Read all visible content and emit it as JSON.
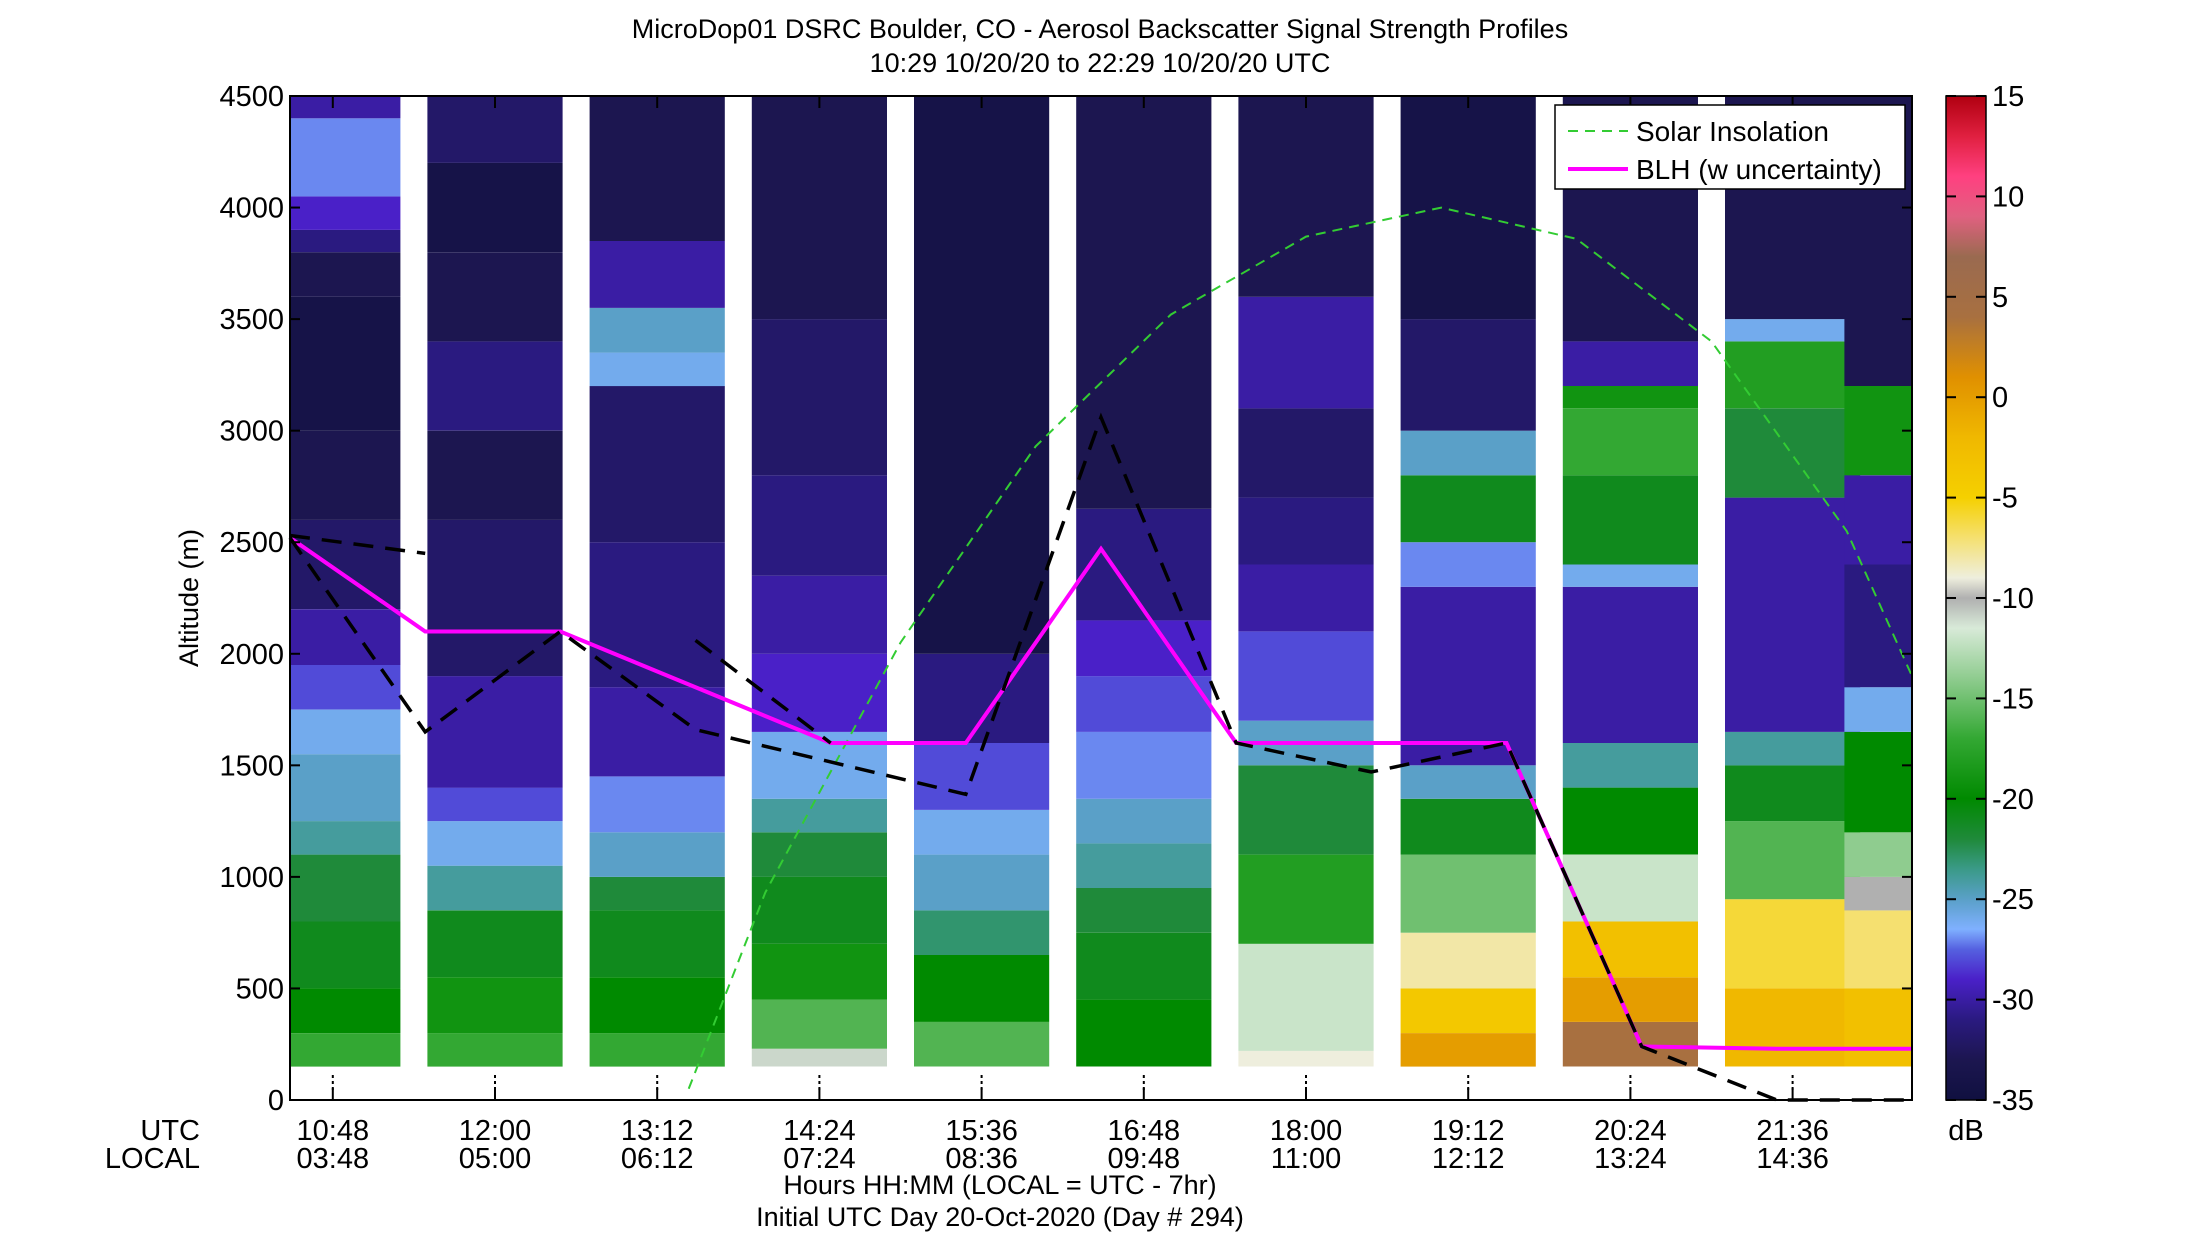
{
  "title_line1": "MicroDop01 DSRC Boulder, CO - Aerosol Backscatter Signal Strength Profiles",
  "title_line2": "10:29 10/20/20 to 22:29 10/20/20  UTC",
  "xlabel_line1": "Hours HH:MM  (LOCAL = UTC - 7hr)",
  "xlabel_line2": "Initial UTC Day 20-Oct-2020 (Day # 294)",
  "utc_label": "UTC",
  "local_label": "LOCAL",
  "colors": {
    "blh": "#ff00ff",
    "uncertainty": "#000000",
    "solar": "#33cc33"
  },
  "chart_data": {
    "type": "heatmap",
    "ylabel": "Altitude (m)",
    "ylim": [
      0,
      4500
    ],
    "yticks": [
      0,
      500,
      1000,
      1500,
      2000,
      2500,
      3000,
      3500,
      4000,
      4500
    ],
    "colorbar": {
      "label": "dB",
      "range": [
        -35,
        15
      ],
      "ticks": [
        -35,
        -30,
        -25,
        -20,
        -15,
        -10,
        -5,
        0,
        5,
        10,
        15
      ]
    },
    "xticks": [
      {
        "utc": "10:48",
        "local": "03:48"
      },
      {
        "utc": "12:00",
        "local": "05:00"
      },
      {
        "utc": "13:12",
        "local": "06:12"
      },
      {
        "utc": "14:24",
        "local": "07:24"
      },
      {
        "utc": "15:36",
        "local": "08:36"
      },
      {
        "utc": "16:48",
        "local": "09:48"
      },
      {
        "utc": "18:00",
        "local": "11:00"
      },
      {
        "utc": "19:12",
        "local": "12:12"
      },
      {
        "utc": "20:24",
        "local": "13:24"
      },
      {
        "utc": "21:36",
        "local": "14:36"
      }
    ],
    "legend": {
      "placement": "top-right",
      "entries": [
        "Solar Insolation",
        "BLH (w uncertainty)"
      ]
    },
    "profiles": [
      {
        "time": "10:48",
        "segments": [
          [
            150,
            300,
            -17
          ],
          [
            300,
            500,
            -20
          ],
          [
            500,
            800,
            -21
          ],
          [
            800,
            1100,
            -22
          ],
          [
            1100,
            1250,
            -24
          ],
          [
            1250,
            1550,
            -25
          ],
          [
            1550,
            1750,
            -26
          ],
          [
            1750,
            1950,
            -28
          ],
          [
            1950,
            2200,
            -30
          ],
          [
            2200,
            2600,
            -32
          ],
          [
            2600,
            3000,
            -33
          ],
          [
            3000,
            3600,
            -34
          ],
          [
            3600,
            3800,
            -33
          ],
          [
            3800,
            3900,
            -31
          ],
          [
            3900,
            4050,
            -29
          ],
          [
            4050,
            4400,
            -27
          ],
          [
            4400,
            4500,
            -30
          ]
        ]
      },
      {
        "time": "12:00",
        "segments": [
          [
            150,
            300,
            -17
          ],
          [
            300,
            550,
            -19
          ],
          [
            550,
            850,
            -21
          ],
          [
            850,
            1050,
            -24
          ],
          [
            1050,
            1250,
            -26
          ],
          [
            1250,
            1400,
            -28
          ],
          [
            1400,
            1900,
            -30
          ],
          [
            1900,
            2600,
            -32
          ],
          [
            2600,
            3000,
            -33
          ],
          [
            3000,
            3400,
            -31
          ],
          [
            3400,
            3800,
            -33
          ],
          [
            3800,
            4200,
            -34
          ],
          [
            4200,
            4500,
            -32
          ]
        ]
      },
      {
        "time": "13:12",
        "segments": [
          [
            150,
            300,
            -17
          ],
          [
            300,
            550,
            -20
          ],
          [
            550,
            850,
            -21
          ],
          [
            850,
            1000,
            -22
          ],
          [
            1000,
            1200,
            -25
          ],
          [
            1200,
            1450,
            -27
          ],
          [
            1450,
            1850,
            -30
          ],
          [
            1850,
            2500,
            -31
          ],
          [
            2500,
            3200,
            -32
          ],
          [
            3200,
            3350,
            -26
          ],
          [
            3350,
            3550,
            -25
          ],
          [
            3550,
            3850,
            -30
          ],
          [
            3850,
            4500,
            -33
          ]
        ]
      },
      {
        "time": "14:24",
        "segments": [
          [
            150,
            230,
            -11
          ],
          [
            230,
            450,
            -16
          ],
          [
            450,
            700,
            -19
          ],
          [
            700,
            1000,
            -21
          ],
          [
            1000,
            1200,
            -22
          ],
          [
            1200,
            1350,
            -24
          ],
          [
            1350,
            1650,
            -26
          ],
          [
            1650,
            2000,
            -29
          ],
          [
            2000,
            2350,
            -30
          ],
          [
            2350,
            2800,
            -31
          ],
          [
            2800,
            3500,
            -32
          ],
          [
            3500,
            4500,
            -33
          ]
        ]
      },
      {
        "time": "15:36",
        "segments": [
          [
            150,
            350,
            -16
          ],
          [
            350,
            650,
            -20
          ],
          [
            650,
            850,
            -23
          ],
          [
            850,
            1100,
            -25
          ],
          [
            1100,
            1300,
            -26
          ],
          [
            1300,
            1600,
            -28
          ],
          [
            1600,
            2000,
            -31
          ],
          [
            2000,
            4500,
            -34
          ]
        ]
      },
      {
        "time": "16:48",
        "segments": [
          [
            150,
            450,
            -20
          ],
          [
            450,
            750,
            -21
          ],
          [
            750,
            950,
            -22
          ],
          [
            950,
            1150,
            -24
          ],
          [
            1150,
            1350,
            -25
          ],
          [
            1350,
            1650,
            -27
          ],
          [
            1650,
            1900,
            -28
          ],
          [
            1900,
            2150,
            -29
          ],
          [
            2150,
            2650,
            -31
          ],
          [
            2650,
            4500,
            -33
          ]
        ]
      },
      {
        "time": "18:00",
        "segments": [
          [
            150,
            220,
            -9
          ],
          [
            220,
            700,
            -12
          ],
          [
            700,
            1100,
            -18
          ],
          [
            1100,
            1500,
            -22
          ],
          [
            1500,
            1700,
            -25
          ],
          [
            1700,
            2100,
            -28
          ],
          [
            2100,
            2400,
            -30
          ],
          [
            2400,
            2700,
            -31
          ],
          [
            2700,
            3100,
            -32
          ],
          [
            3100,
            3600,
            -30
          ],
          [
            3600,
            4500,
            -33
          ]
        ]
      },
      {
        "time": "19:12",
        "segments": [
          [
            150,
            300,
            0
          ],
          [
            300,
            500,
            -4
          ],
          [
            500,
            750,
            -8
          ],
          [
            750,
            1100,
            -15
          ],
          [
            1100,
            1350,
            -21
          ],
          [
            1350,
            1500,
            -25
          ],
          [
            1500,
            2300,
            -30
          ],
          [
            2300,
            2500,
            -27
          ],
          [
            2500,
            2800,
            -21
          ],
          [
            2800,
            3000,
            -25
          ],
          [
            3000,
            3500,
            -32
          ],
          [
            3500,
            4500,
            -34
          ]
        ]
      },
      {
        "time": "20:24",
        "segments": [
          [
            150,
            350,
            4
          ],
          [
            350,
            550,
            0
          ],
          [
            550,
            800,
            -3
          ],
          [
            800,
            1100,
            -12
          ],
          [
            1100,
            1400,
            -20
          ],
          [
            1400,
            1600,
            -24
          ],
          [
            1600,
            2300,
            -30
          ],
          [
            2300,
            2400,
            -26
          ],
          [
            2400,
            2800,
            -21
          ],
          [
            2800,
            3100,
            -17
          ],
          [
            3100,
            3200,
            -19
          ],
          [
            3200,
            3400,
            -30
          ],
          [
            3400,
            4500,
            -33
          ]
        ]
      },
      {
        "time": "21:36",
        "segments": [
          [
            150,
            500,
            -2
          ],
          [
            500,
            900,
            -6
          ],
          [
            900,
            1250,
            -16
          ],
          [
            1250,
            1500,
            -21
          ],
          [
            1500,
            1650,
            -24
          ],
          [
            1650,
            2700,
            -30
          ],
          [
            2700,
            3100,
            -22
          ],
          [
            3100,
            3400,
            -18
          ],
          [
            3400,
            3500,
            -26
          ],
          [
            3500,
            4500,
            -33
          ]
        ]
      },
      {
        "time": "22:29",
        "segments": [
          [
            150,
            500,
            -3
          ],
          [
            500,
            850,
            -7
          ],
          [
            850,
            1000,
            -10
          ],
          [
            1000,
            1200,
            -14
          ],
          [
            1200,
            1650,
            -20
          ],
          [
            1650,
            1850,
            -26
          ],
          [
            1850,
            2400,
            -31
          ],
          [
            2400,
            2800,
            -30
          ],
          [
            2800,
            3200,
            -19
          ],
          [
            3200,
            4500,
            -33
          ]
        ]
      }
    ],
    "blh": [
      {
        "time": "10:29",
        "altitude": 2520
      },
      {
        "time": "11:29",
        "altitude": 2100
      },
      {
        "time": "12:29",
        "altitude": 2100
      },
      {
        "time": "14:29",
        "altitude": 1600
      },
      {
        "time": "15:29",
        "altitude": 1600
      },
      {
        "time": "16:29",
        "altitude": 2470
      },
      {
        "time": "17:29",
        "altitude": 1600
      },
      {
        "time": "19:29",
        "altitude": 1600
      },
      {
        "time": "20:29",
        "altitude": 240
      },
      {
        "time": "21:29",
        "altitude": 230
      },
      {
        "time": "22:29",
        "altitude": 230
      }
    ],
    "blh_upper": [
      {
        "time": "10:29",
        "altitude": 2530
      },
      {
        "time": "11:29",
        "altitude": 2450
      }
    ],
    "blh_uncertainty": [
      {
        "time": "10:29",
        "altitude": 2520
      },
      {
        "time": "11:29",
        "altitude": 1650
      },
      {
        "time": "12:29",
        "altitude": 2100
      },
      {
        "time": "13:29",
        "altitude": 1660
      },
      {
        "time": "15:29",
        "altitude": 1370
      },
      {
        "time": "16:29",
        "altitude": 3060
      },
      {
        "time": "17:29",
        "altitude": 1600
      },
      {
        "time": "18:29",
        "altitude": 1470
      },
      {
        "time": "19:29",
        "altitude": 1600
      },
      {
        "time": "20:29",
        "altitude": 240
      },
      {
        "time": "21:29",
        "altitude": 0
      },
      {
        "time": "22:29",
        "altitude": 0
      }
    ],
    "blh_uncertainty_extra": [
      {
        "time": "13:29",
        "altitude": 2060
      },
      {
        "time": "14:29",
        "altitude": 1600
      }
    ],
    "solar_insolation": [
      {
        "time": "13:26",
        "altitude": 50
      },
      {
        "time": "14:00",
        "altitude": 930
      },
      {
        "time": "15:00",
        "altitude": 2050
      },
      {
        "time": "16:00",
        "altitude": 2930
      },
      {
        "time": "17:00",
        "altitude": 3520
      },
      {
        "time": "18:00",
        "altitude": 3870
      },
      {
        "time": "19:00",
        "altitude": 4000
      },
      {
        "time": "20:00",
        "altitude": 3860
      },
      {
        "time": "21:00",
        "altitude": 3400
      },
      {
        "time": "22:00",
        "altitude": 2550
      },
      {
        "time": "22:29",
        "altitude": 1900
      }
    ]
  }
}
